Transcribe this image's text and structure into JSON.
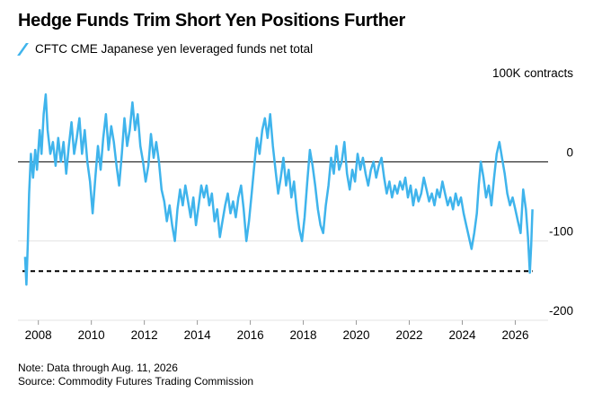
{
  "chart_data": {
    "type": "line",
    "title": "Hedge Funds Trim Short Yen Positions Further",
    "series": [
      {
        "name": "CFTC CME Japanese yen leveraged funds net total",
        "color": "#3fb4ec",
        "points": [
          [
            2007.5,
            -120
          ],
          [
            2007.55,
            -155
          ],
          [
            2007.6,
            -105
          ],
          [
            2007.65,
            -40
          ],
          [
            2007.72,
            10
          ],
          [
            2007.8,
            -20
          ],
          [
            2007.88,
            15
          ],
          [
            2007.95,
            -10
          ],
          [
            2008.05,
            40
          ],
          [
            2008.12,
            10
          ],
          [
            2008.2,
            60
          ],
          [
            2008.28,
            85
          ],
          [
            2008.35,
            40
          ],
          [
            2008.45,
            10
          ],
          [
            2008.55,
            25
          ],
          [
            2008.65,
            -5
          ],
          [
            2008.75,
            30
          ],
          [
            2008.85,
            0
          ],
          [
            2008.95,
            25
          ],
          [
            2009.05,
            -15
          ],
          [
            2009.15,
            20
          ],
          [
            2009.25,
            50
          ],
          [
            2009.35,
            10
          ],
          [
            2009.45,
            30
          ],
          [
            2009.55,
            55
          ],
          [
            2009.65,
            10
          ],
          [
            2009.75,
            40
          ],
          [
            2009.85,
            0
          ],
          [
            2009.95,
            -25
          ],
          [
            2010.05,
            -65
          ],
          [
            2010.15,
            -20
          ],
          [
            2010.25,
            20
          ],
          [
            2010.35,
            -10
          ],
          [
            2010.45,
            30
          ],
          [
            2010.55,
            60
          ],
          [
            2010.65,
            15
          ],
          [
            2010.75,
            45
          ],
          [
            2010.85,
            25
          ],
          [
            2010.95,
            -5
          ],
          [
            2011.05,
            -30
          ],
          [
            2011.15,
            10
          ],
          [
            2011.25,
            55
          ],
          [
            2011.35,
            20
          ],
          [
            2011.45,
            40
          ],
          [
            2011.55,
            75
          ],
          [
            2011.65,
            40
          ],
          [
            2011.75,
            60
          ],
          [
            2011.85,
            20
          ],
          [
            2011.95,
            0
          ],
          [
            2012.05,
            -25
          ],
          [
            2012.15,
            -5
          ],
          [
            2012.25,
            35
          ],
          [
            2012.35,
            5
          ],
          [
            2012.45,
            25
          ],
          [
            2012.55,
            0
          ],
          [
            2012.65,
            -35
          ],
          [
            2012.75,
            -50
          ],
          [
            2012.85,
            -75
          ],
          [
            2012.95,
            -55
          ],
          [
            2013.05,
            -80
          ],
          [
            2013.15,
            -100
          ],
          [
            2013.25,
            -60
          ],
          [
            2013.35,
            -35
          ],
          [
            2013.45,
            -55
          ],
          [
            2013.55,
            -30
          ],
          [
            2013.65,
            -50
          ],
          [
            2013.75,
            -70
          ],
          [
            2013.85,
            -45
          ],
          [
            2013.95,
            -80
          ],
          [
            2014.05,
            -55
          ],
          [
            2014.15,
            -30
          ],
          [
            2014.25,
            -45
          ],
          [
            2014.35,
            -30
          ],
          [
            2014.45,
            -55
          ],
          [
            2014.55,
            -40
          ],
          [
            2014.65,
            -75
          ],
          [
            2014.75,
            -60
          ],
          [
            2014.85,
            -95
          ],
          [
            2014.95,
            -75
          ],
          [
            2015.05,
            -55
          ],
          [
            2015.15,
            -40
          ],
          [
            2015.25,
            -65
          ],
          [
            2015.35,
            -50
          ],
          [
            2015.45,
            -70
          ],
          [
            2015.55,
            -45
          ],
          [
            2015.65,
            -30
          ],
          [
            2015.75,
            -60
          ],
          [
            2015.85,
            -100
          ],
          [
            2015.95,
            -75
          ],
          [
            2016.05,
            -40
          ],
          [
            2016.15,
            -5
          ],
          [
            2016.25,
            30
          ],
          [
            2016.35,
            10
          ],
          [
            2016.45,
            40
          ],
          [
            2016.55,
            55
          ],
          [
            2016.65,
            30
          ],
          [
            2016.75,
            60
          ],
          [
            2016.85,
            20
          ],
          [
            2016.95,
            -10
          ],
          [
            2017.05,
            -40
          ],
          [
            2017.15,
            -20
          ],
          [
            2017.25,
            5
          ],
          [
            2017.35,
            -30
          ],
          [
            2017.45,
            -10
          ],
          [
            2017.55,
            -45
          ],
          [
            2017.65,
            -25
          ],
          [
            2017.75,
            -60
          ],
          [
            2017.85,
            -85
          ],
          [
            2017.95,
            -100
          ],
          [
            2018.05,
            -70
          ],
          [
            2018.15,
            -25
          ],
          [
            2018.25,
            15
          ],
          [
            2018.35,
            -5
          ],
          [
            2018.45,
            -30
          ],
          [
            2018.55,
            -60
          ],
          [
            2018.65,
            -80
          ],
          [
            2018.75,
            -90
          ],
          [
            2018.85,
            -55
          ],
          [
            2018.95,
            -30
          ],
          [
            2019.05,
            5
          ],
          [
            2019.15,
            -15
          ],
          [
            2019.25,
            20
          ],
          [
            2019.35,
            -10
          ],
          [
            2019.45,
            0
          ],
          [
            2019.55,
            25
          ],
          [
            2019.65,
            -15
          ],
          [
            2019.75,
            -35
          ],
          [
            2019.85,
            -10
          ],
          [
            2019.95,
            -25
          ],
          [
            2020.05,
            10
          ],
          [
            2020.15,
            -10
          ],
          [
            2020.25,
            5
          ],
          [
            2020.35,
            -15
          ],
          [
            2020.45,
            -30
          ],
          [
            2020.55,
            -10
          ],
          [
            2020.65,
            0
          ],
          [
            2020.75,
            -20
          ],
          [
            2020.85,
            -5
          ],
          [
            2020.95,
            5
          ],
          [
            2021.05,
            -20
          ],
          [
            2021.15,
            -40
          ],
          [
            2021.25,
            -25
          ],
          [
            2021.35,
            -45
          ],
          [
            2021.45,
            -30
          ],
          [
            2021.55,
            -40
          ],
          [
            2021.65,
            -25
          ],
          [
            2021.75,
            -35
          ],
          [
            2021.85,
            -20
          ],
          [
            2021.95,
            -45
          ],
          [
            2022.05,
            -30
          ],
          [
            2022.15,
            -55
          ],
          [
            2022.25,
            -35
          ],
          [
            2022.35,
            -50
          ],
          [
            2022.45,
            -40
          ],
          [
            2022.55,
            -20
          ],
          [
            2022.65,
            -35
          ],
          [
            2022.75,
            -50
          ],
          [
            2022.85,
            -40
          ],
          [
            2022.95,
            -55
          ],
          [
            2023.05,
            -35
          ],
          [
            2023.15,
            -45
          ],
          [
            2023.25,
            -25
          ],
          [
            2023.35,
            -40
          ],
          [
            2023.45,
            -55
          ],
          [
            2023.55,
            -45
          ],
          [
            2023.65,
            -60
          ],
          [
            2023.75,
            -40
          ],
          [
            2023.85,
            -55
          ],
          [
            2023.95,
            -45
          ],
          [
            2024.05,
            -65
          ],
          [
            2024.15,
            -80
          ],
          [
            2024.25,
            -95
          ],
          [
            2024.35,
            -110
          ],
          [
            2024.45,
            -90
          ],
          [
            2024.55,
            -65
          ],
          [
            2024.62,
            -30
          ],
          [
            2024.7,
            0
          ],
          [
            2024.8,
            -20
          ],
          [
            2024.9,
            -45
          ],
          [
            2025.0,
            -30
          ],
          [
            2025.1,
            -55
          ],
          [
            2025.2,
            -20
          ],
          [
            2025.3,
            10
          ],
          [
            2025.4,
            25
          ],
          [
            2025.5,
            5
          ],
          [
            2025.6,
            -15
          ],
          [
            2025.7,
            -40
          ],
          [
            2025.8,
            -55
          ],
          [
            2025.9,
            -45
          ],
          [
            2026.0,
            -60
          ],
          [
            2026.1,
            -75
          ],
          [
            2026.2,
            -90
          ],
          [
            2026.3,
            -35
          ],
          [
            2026.4,
            -60
          ],
          [
            2026.48,
            -95
          ],
          [
            2026.55,
            -140
          ],
          [
            2026.6,
            -105
          ],
          [
            2026.65,
            -60
          ]
        ]
      }
    ],
    "x": {
      "min": 2007.4,
      "max": 2026.9,
      "ticks": [
        2008,
        2010,
        2012,
        2014,
        2016,
        2018,
        2020,
        2022,
        2024,
        2026
      ]
    },
    "y": {
      "min": -200,
      "max": 100,
      "ticks": [
        0,
        -100,
        -200
      ],
      "unit_label": "100K contracts"
    },
    "zero_line": 0,
    "reference_line": {
      "value": -138,
      "x_end": 2026.65,
      "style": "dashed"
    },
    "grid": true,
    "legend": "top-left"
  },
  "footer": {
    "note": "Note: Data through Aug. 11, 2026",
    "source": "Source: Commodity Futures Trading Commission"
  }
}
